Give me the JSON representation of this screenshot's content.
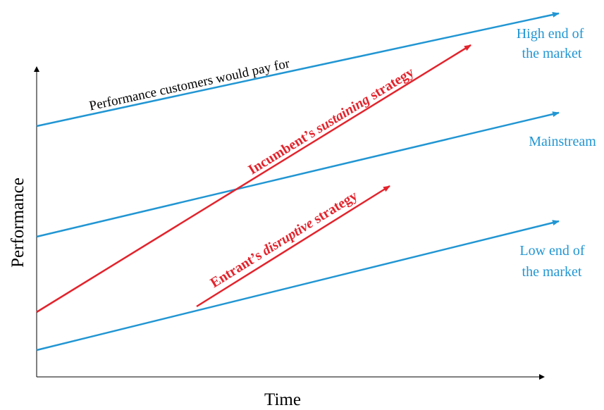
{
  "axes": {
    "x_label": "Time",
    "y_label": "Performance"
  },
  "market_tiers": [
    {
      "label_lines": [
        "High end of",
        "the market"
      ]
    },
    {
      "label_lines": [
        "Mainstream"
      ]
    },
    {
      "label_lines": [
        "Low end of",
        "the market"
      ]
    }
  ],
  "performance_line_label": "Performance customers would pay for",
  "strategies": {
    "incumbent": {
      "prefix": "Incumbent’s ",
      "emphasis": "sustaining",
      "suffix": " strategy"
    },
    "entrant": {
      "prefix": "Entrant’s ",
      "emphasis": "disruptive",
      "suffix": " strategy"
    }
  },
  "colors": {
    "market_line": "#2196d3",
    "strategy_line": "#e3232c",
    "axis": "#000000"
  }
}
